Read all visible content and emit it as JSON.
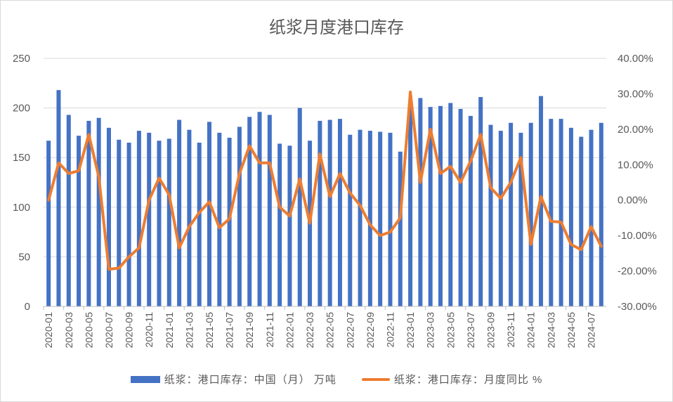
{
  "chart_data": {
    "type": "bar",
    "title": "纸浆月度港口库存",
    "categories": [
      "2020-01",
      "2020-02",
      "2020-03",
      "2020-04",
      "2020-05",
      "2020-06",
      "2020-07",
      "2020-08",
      "2020-09",
      "2020-10",
      "2020-11",
      "2020-12",
      "2021-01",
      "2021-02",
      "2021-03",
      "2021-04",
      "2021-05",
      "2021-06",
      "2021-07",
      "2021-08",
      "2021-09",
      "2021-10",
      "2021-11",
      "2021-12",
      "2022-01",
      "2022-02",
      "2022-03",
      "2022-04",
      "2022-05",
      "2022-06",
      "2022-07",
      "2022-08",
      "2022-09",
      "2022-10",
      "2022-11",
      "2022-12",
      "2023-01",
      "2023-02",
      "2023-03",
      "2023-04",
      "2023-05",
      "2023-06",
      "2023-07",
      "2023-08",
      "2023-09",
      "2023-10",
      "2023-11",
      "2023-12",
      "2024-01",
      "2024-02",
      "2024-03",
      "2024-04",
      "2024-05",
      "2024-06",
      "2024-07",
      "2024-08"
    ],
    "x_tick_labels": [
      "2020-01",
      "2020-03",
      "2020-05",
      "2020-07",
      "2020-09",
      "2020-11",
      "2021-01",
      "2021-03",
      "2021-05",
      "2021-07",
      "2021-09",
      "2021-11",
      "2022-01",
      "2022-03",
      "2022-05",
      "2022-07",
      "2022-09",
      "2022-11",
      "2023-01",
      "2023-03",
      "2023-05",
      "2023-07",
      "2023-09",
      "2023-11",
      "2024-01",
      "2024-03",
      "2024-05",
      "2024-07"
    ],
    "series": [
      {
        "name": "纸浆：港口库存：中国（月） 万吨",
        "type": "bar",
        "axis": "left",
        "color": "#4472c4",
        "values": [
          167,
          218,
          193,
          172,
          187,
          190,
          180,
          168,
          165,
          177,
          175,
          167,
          169,
          188,
          178,
          165,
          186,
          175,
          170,
          181,
          191,
          196,
          193,
          164,
          162,
          200,
          167,
          187,
          188,
          189,
          173,
          178,
          177,
          176,
          175,
          156,
          203,
          210,
          201,
          202,
          205,
          199,
          192,
          211,
          183,
          177,
          185,
          175,
          185,
          212,
          189,
          189,
          180,
          171,
          178,
          185
        ]
      },
      {
        "name": "纸浆：港口库存：月度同比 %",
        "type": "line",
        "axis": "right",
        "color": "#ed7d31",
        "values": [
          0.0,
          10.5,
          7.5,
          8.3,
          18.5,
          6.5,
          -19.5,
          -19.2,
          -16.0,
          -13.5,
          0.0,
          6.2,
          1.5,
          -13.5,
          -7.5,
          -3.5,
          -0.5,
          -7.8,
          -5.3,
          7.5,
          15.3,
          10.5,
          10.5,
          -2.0,
          -4.5,
          6.0,
          -6.5,
          13.0,
          1.0,
          7.5,
          2.0,
          -1.5,
          -7.0,
          -10.0,
          -9.0,
          -5.0,
          30.5,
          5.0,
          20.0,
          7.5,
          9.5,
          5.0,
          11.0,
          18.5,
          3.5,
          0.5,
          5.0,
          12.0,
          -12.5,
          1.0,
          -6.0,
          -6.2,
          -12.5,
          -14.0,
          -7.5,
          -13.0
        ]
      }
    ],
    "y_left": {
      "min": 0,
      "max": 250,
      "ticks": [
        "0",
        "50",
        "100",
        "150",
        "200",
        "250"
      ]
    },
    "y_right": {
      "min": -30,
      "max": 40,
      "ticks": [
        "-30.00%",
        "-20.00%",
        "-10.00%",
        "0.00%",
        "10.00%",
        "20.00%",
        "30.00%",
        "40.00%"
      ]
    },
    "grid": true,
    "legend_position": "bottom"
  },
  "legend": {
    "bar_label": "纸浆：港口库存：中国（月） 万吨",
    "line_label": "纸浆：港口库存：月度同比 %"
  }
}
